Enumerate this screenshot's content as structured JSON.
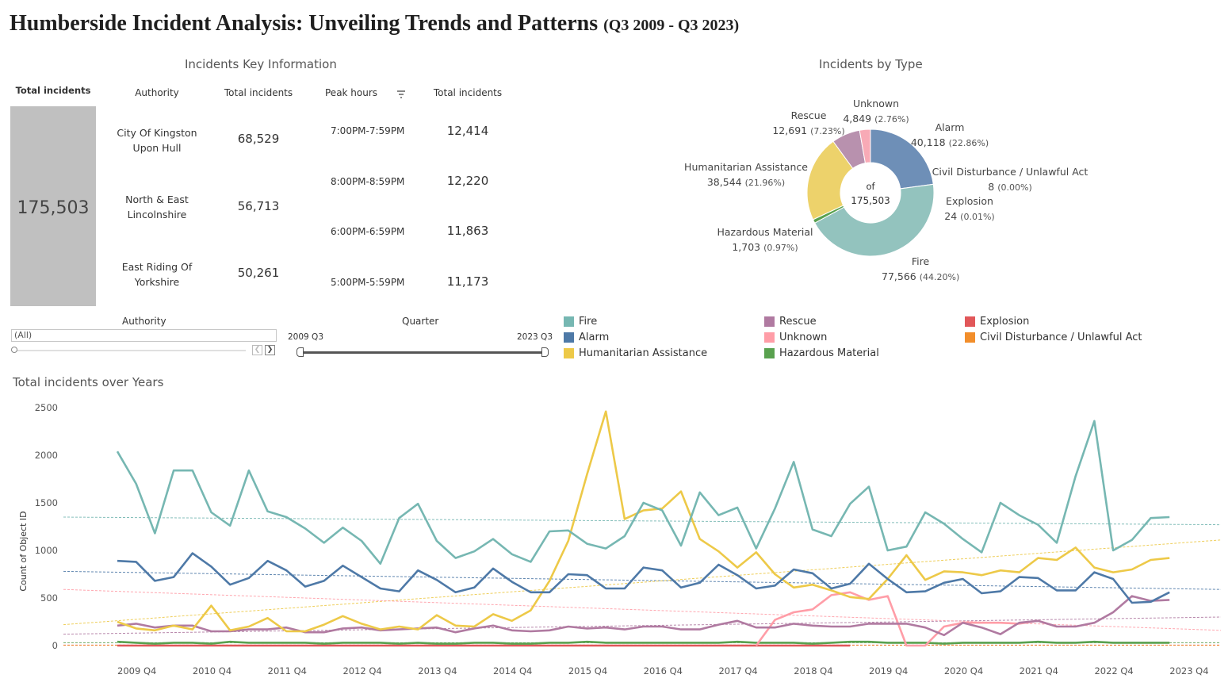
{
  "title": {
    "main": "Humberside Incident Analysis: Unveiling Trends and Patterns",
    "period": "(Q3 2009 - Q3 2023)"
  },
  "key_info": {
    "title": "Incidents Key Information",
    "total_label": "Total incidents",
    "total_value": "175,503",
    "authority_header": "Authority",
    "authority_total_header": "Total incidents",
    "peak_header": "Peak hours",
    "peak_total_header": "Total incidents",
    "authorities": [
      {
        "name": "City Of Kingston Upon Hull",
        "total": "68,529"
      },
      {
        "name": "North & East Lincolnshire",
        "total": "56,713"
      },
      {
        "name": "East Riding Of Yorkshire",
        "total": "50,261"
      }
    ],
    "peak_hours": [
      {
        "hours": "7:00PM-7:59PM",
        "total": "12,414"
      },
      {
        "hours": "8:00PM-8:59PM",
        "total": "12,220"
      },
      {
        "hours": "6:00PM-6:59PM",
        "total": "11,863"
      },
      {
        "hours": "5:00PM-5:59PM",
        "total": "11,173"
      }
    ]
  },
  "donut": {
    "title": "Incidents by Type",
    "center_top": "of",
    "center_value": "175,503",
    "slices": [
      {
        "name": "Alarm",
        "value": 40118,
        "label": "40,118",
        "pct": "(22.86%)",
        "color": "#6e8fb7"
      },
      {
        "name": "Civil Disturbance / Unlawful Act",
        "value": 8,
        "label": "8",
        "pct": "(0.00%)",
        "color": "#f28e2b"
      },
      {
        "name": "Explosion",
        "value": 24,
        "label": "24",
        "pct": "(0.01%)",
        "color": "#e15759"
      },
      {
        "name": "Fire",
        "value": 77566,
        "label": "77,566",
        "pct": "(44.20%)",
        "color": "#93c3be"
      },
      {
        "name": "Hazardous Material",
        "value": 1703,
        "label": "1,703",
        "pct": "(0.97%)",
        "color": "#59a14f"
      },
      {
        "name": "Humanitarian Assistance",
        "value": 38544,
        "label": "38,544",
        "pct": "(21.96%)",
        "color": "#edd26b"
      },
      {
        "name": "Rescue",
        "value": 12691,
        "label": "12,691",
        "pct": "(7.23%)",
        "color": "#b891ae"
      },
      {
        "name": "Unknown",
        "value": 4849,
        "label": "4,849",
        "pct": "(2.76%)",
        "color": "#f8aab6"
      }
    ]
  },
  "filters": {
    "authority_label": "Authority",
    "authority_value": "(All)",
    "quarter_label": "Quarter",
    "quarter_start": "2009 Q3",
    "quarter_end": "2023 Q3"
  },
  "legend": [
    {
      "name": "Fire",
      "color": "#76b7b2"
    },
    {
      "name": "Alarm",
      "color": "#4e79a7"
    },
    {
      "name": "Humanitarian Assistance",
      "color": "#edc948"
    },
    {
      "name": "Rescue",
      "color": "#b07aa1"
    },
    {
      "name": "Unknown",
      "color": "#ff9da7"
    },
    {
      "name": "Hazardous Material",
      "color": "#59a14f"
    },
    {
      "name": "Explosion",
      "color": "#e15759"
    },
    {
      "name": "Civil Disturbance / Unlawful Act",
      "color": "#f28e2b"
    }
  ],
  "chart_data": {
    "type": "line",
    "title": "Total incidents over Years",
    "ylabel": "Count of Object ID",
    "xlabel": "",
    "ylim": [
      0,
      2500
    ],
    "yticks": [
      0,
      500,
      1000,
      1500,
      2000,
      2500
    ],
    "x_tick_labels": [
      "2009 Q4",
      "2010 Q4",
      "2011 Q4",
      "2012 Q4",
      "2013 Q4",
      "2014 Q4",
      "2015 Q4",
      "2016 Q4",
      "2017 Q4",
      "2018 Q4",
      "2019 Q4",
      "2020 Q4",
      "2021 Q4",
      "2022 Q4",
      "2023 Q4"
    ],
    "x_start": "2009 Q3",
    "x_end": "2023 Q3",
    "series": [
      {
        "name": "Fire",
        "color": "#76b7b2",
        "values": [
          2040,
          1700,
          1180,
          1840,
          1840,
          1400,
          1260,
          1840,
          1410,
          1350,
          1230,
          1080,
          1240,
          1100,
          860,
          1340,
          1490,
          1100,
          920,
          990,
          1120,
          960,
          880,
          1200,
          1210,
          1070,
          1020,
          1150,
          1500,
          1420,
          1050,
          1610,
          1370,
          1450,
          1020,
          1440,
          1930,
          1220,
          1150,
          1490,
          1670,
          1000,
          1040,
          1400,
          1280,
          1120,
          980,
          1500,
          1370,
          1270,
          1080,
          1780,
          2360,
          1000,
          1110,
          1340,
          1350
        ],
        "trend": [
          1350,
          1270
        ]
      },
      {
        "name": "Alarm",
        "color": "#4e79a7",
        "values": [
          890,
          880,
          680,
          720,
          970,
          830,
          640,
          710,
          890,
          790,
          620,
          680,
          840,
          720,
          600,
          570,
          790,
          690,
          560,
          610,
          810,
          670,
          560,
          560,
          750,
          740,
          600,
          600,
          820,
          790,
          610,
          660,
          850,
          740,
          600,
          630,
          800,
          760,
          600,
          650,
          860,
          700,
          560,
          570,
          660,
          700,
          550,
          570,
          720,
          710,
          580,
          580,
          770,
          700,
          450,
          460,
          560
        ],
        "trend": [
          780,
          590
        ]
      },
      {
        "name": "Humanitarian Assistance",
        "color": "#edc948",
        "values": [
          250,
          180,
          160,
          210,
          170,
          420,
          160,
          200,
          290,
          150,
          150,
          220,
          310,
          230,
          170,
          200,
          170,
          320,
          210,
          200,
          330,
          260,
          370,
          680,
          1100,
          1800,
          2460,
          1330,
          1420,
          1440,
          1620,
          1120,
          990,
          820,
          980,
          750,
          610,
          640,
          580,
          510,
          490,
          700,
          950,
          690,
          780,
          770,
          740,
          790,
          770,
          920,
          900,
          1030,
          820,
          770,
          800,
          900,
          920
        ],
        "trend": [
          220,
          1110
        ]
      },
      {
        "name": "Rescue",
        "color": "#b07aa1",
        "values": [
          210,
          230,
          190,
          210,
          210,
          150,
          150,
          170,
          170,
          190,
          140,
          140,
          180,
          190,
          160,
          170,
          180,
          190,
          140,
          180,
          210,
          160,
          150,
          160,
          200,
          180,
          190,
          170,
          200,
          200,
          170,
          170,
          220,
          260,
          190,
          190,
          230,
          210,
          200,
          200,
          230,
          230,
          230,
          190,
          110,
          240,
          190,
          120,
          240,
          260,
          200,
          200,
          240,
          350,
          520,
          470,
          480
        ],
        "trend": [
          120,
          300
        ]
      },
      {
        "name": "Unknown",
        "color": "#ff9da7",
        "values": [
          null,
          null,
          null,
          null,
          null,
          null,
          null,
          null,
          null,
          null,
          null,
          null,
          null,
          null,
          null,
          null,
          null,
          null,
          null,
          null,
          null,
          null,
          null,
          null,
          null,
          null,
          null,
          null,
          null,
          null,
          null,
          null,
          null,
          null,
          0,
          270,
          350,
          380,
          530,
          560,
          480,
          520,
          0,
          0,
          200,
          240,
          240,
          240,
          230,
          260,
          200,
          null,
          null,
          null,
          null,
          null,
          null
        ],
        "trend": [
          590,
          160
        ]
      },
      {
        "name": "Hazardous Material",
        "color": "#59a14f",
        "values": [
          40,
          30,
          20,
          30,
          30,
          20,
          40,
          30,
          30,
          30,
          30,
          20,
          30,
          30,
          30,
          20,
          30,
          20,
          20,
          30,
          30,
          20,
          20,
          30,
          30,
          40,
          30,
          30,
          30,
          30,
          30,
          30,
          30,
          40,
          30,
          30,
          30,
          20,
          30,
          40,
          40,
          30,
          30,
          30,
          20,
          30,
          30,
          30,
          30,
          40,
          30,
          30,
          40,
          30,
          30,
          30,
          30
        ],
        "trend": [
          30,
          30
        ]
      },
      {
        "name": "Explosion",
        "color": "#e15759",
        "values": [
          0,
          0,
          0,
          0,
          0,
          0,
          0,
          0,
          0,
          0,
          0,
          0,
          0,
          0,
          0,
          0,
          0,
          0,
          0,
          0,
          0,
          0,
          0,
          0,
          0,
          0,
          0,
          0,
          0,
          0,
          0,
          0,
          0,
          0,
          0,
          0,
          0,
          0,
          0,
          0,
          null,
          null,
          null,
          null,
          null,
          null,
          null,
          null,
          null,
          null,
          null,
          null,
          null,
          null,
          null,
          null,
          null
        ],
        "trend": [
          5,
          5
        ]
      },
      {
        "name": "Civil Disturbance / Unlawful Act",
        "color": "#f28e2b",
        "values": [
          null,
          null,
          null,
          null,
          null,
          null,
          null,
          null,
          null,
          null,
          null,
          null,
          null,
          null,
          null,
          null,
          null,
          null,
          null,
          null,
          null,
          null,
          null,
          null,
          null,
          null,
          null,
          null,
          null,
          null,
          null,
          null,
          null,
          null,
          null,
          null,
          null,
          null,
          null,
          null,
          null,
          null,
          null,
          null,
          null,
          null,
          null,
          null,
          null,
          null,
          null,
          null,
          null,
          null,
          null,
          null,
          null
        ],
        "trend": [
          3,
          3
        ]
      }
    ]
  }
}
